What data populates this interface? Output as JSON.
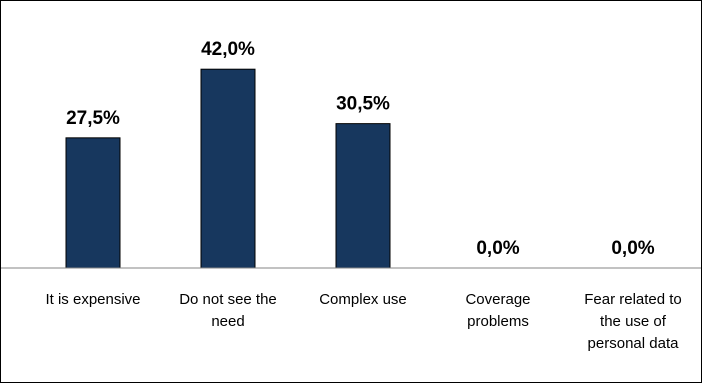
{
  "chart_data": {
    "type": "bar",
    "categories": [
      [
        "It is expensive"
      ],
      [
        "Do not see the",
        "need"
      ],
      [
        "Complex use"
      ],
      [
        "Coverage",
        "problems"
      ],
      [
        "Fear related to",
        "the use of",
        "personal data"
      ]
    ],
    "values": [
      27.5,
      42.0,
      30.5,
      0.0,
      0.0
    ],
    "data_labels": [
      "27,5%",
      "42,0%",
      "30,5%",
      "0,0%",
      "0,0%"
    ],
    "ylim": [
      0,
      45
    ],
    "bar_color": "#17375e",
    "axis_color": "#868686",
    "grid": false,
    "legend": "none"
  }
}
